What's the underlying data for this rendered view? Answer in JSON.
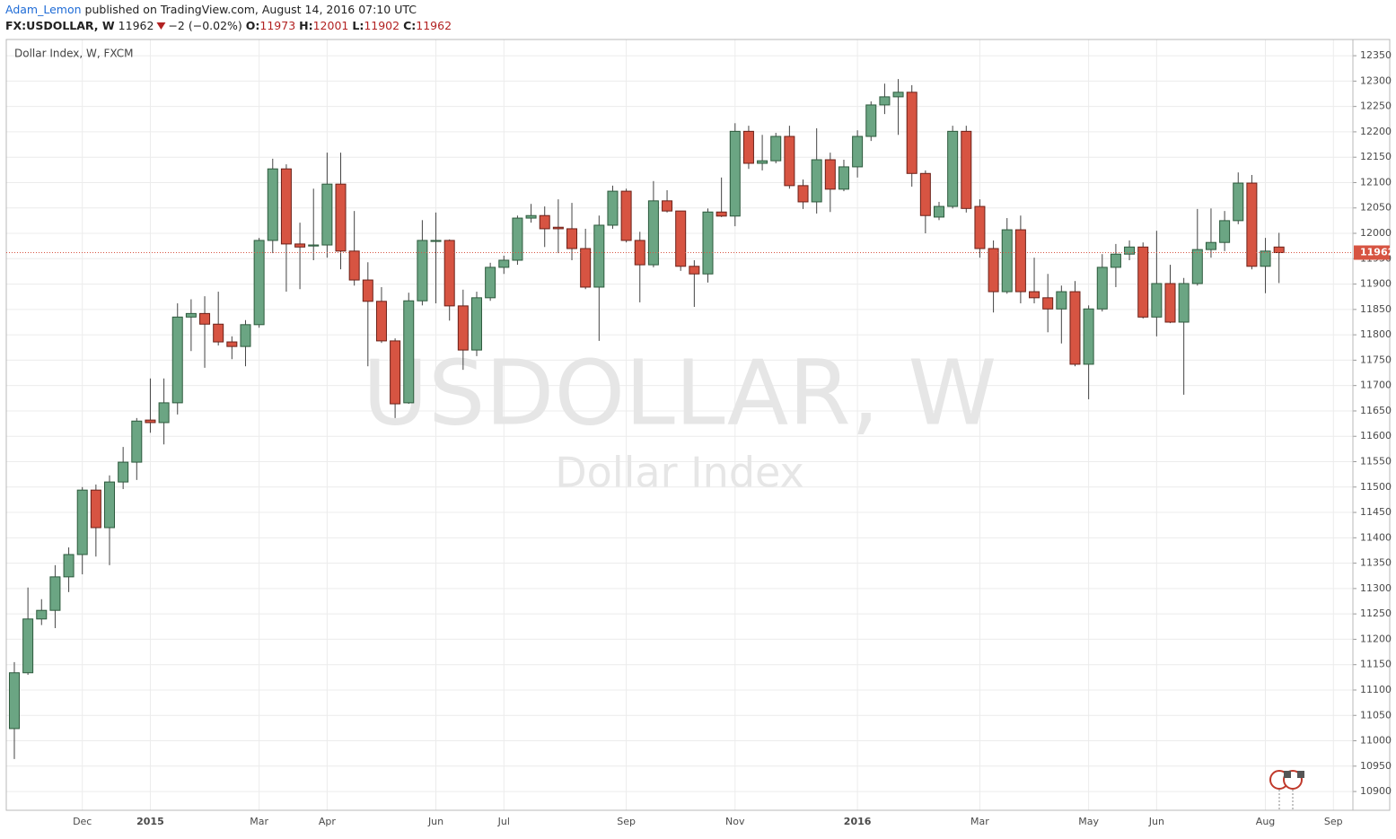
{
  "header": {
    "author": "Adam_Lemon",
    "published": "published on TradingView.com, August 14, 2016 07:10 UTC",
    "symbol": "FX:USDOLLAR, W",
    "last": "11962",
    "change": "−2 (−0.02%)",
    "open_label": "O:",
    "open": "11973",
    "high_label": "H:",
    "high": "12001",
    "low_label": "L:",
    "low": "11902",
    "close_label": "C:",
    "close": "11962"
  },
  "chart_data": {
    "type": "candlestick",
    "title": "Dollar Index, W, FXCM",
    "watermark": "USDOLLAR, W",
    "watermark_subtitle": "Dollar Index",
    "categories": [
      null,
      null,
      null,
      null,
      null,
      "Dec",
      null,
      null,
      null,
      null,
      "2015",
      null,
      null,
      null,
      null,
      null,
      null,
      null,
      "Mar",
      null,
      null,
      null,
      null,
      "Apr",
      null,
      null,
      null,
      null,
      null,
      null,
      null,
      "Jun",
      null,
      null,
      null,
      null,
      "Jul",
      null,
      null,
      null,
      null,
      null,
      null,
      null,
      null,
      "Sep",
      null,
      null,
      null,
      null,
      null,
      null,
      null,
      "Nov",
      null,
      null,
      null,
      null,
      null,
      null,
      null,
      null,
      "2016",
      null,
      null,
      null,
      null,
      null,
      null,
      null,
      null,
      "Mar",
      null,
      null,
      null,
      null,
      null,
      null,
      null,
      "May",
      null,
      null,
      null,
      null,
      "Jun",
      null,
      null,
      null,
      null,
      null,
      null,
      null,
      "Aug",
      null,
      null,
      null,
      null,
      "Sep",
      null
    ],
    "open": [
      11024,
      11134,
      11240,
      11257,
      11323,
      11367,
      11494,
      11420,
      11510,
      11549,
      11632,
      11627,
      11666,
      11835,
      11842,
      11821,
      11786,
      11777,
      11820,
      11986,
      12127,
      11979,
      11975,
      11977,
      12097,
      11965,
      11908,
      11866,
      11788,
      11666,
      11867,
      11984,
      11986,
      11857,
      11770,
      11873,
      11933,
      11947,
      12030,
      12035,
      12012,
      12009,
      11970,
      11894,
      12016,
      12083,
      11986,
      11938,
      12064,
      12044,
      11935,
      11920,
      12042,
      12034,
      12201,
      12138,
      12143,
      12191,
      12094,
      12062,
      12145,
      12087,
      12131,
      12191,
      12253,
      12269,
      12278,
      12118,
      12032,
      12053,
      12201,
      12053,
      11970,
      11885,
      12007,
      11885,
      11873,
      11851,
      11885,
      11742,
      11851,
      11933,
      11959,
      11973,
      11835,
      11901,
      11825,
      11901,
      11968,
      11982,
      12025,
      12099,
      11935,
      11973,
      null,
      null,
      null,
      null,
      null
    ],
    "high": [
      11155,
      11302,
      11279,
      11346,
      11381,
      11500,
      11505,
      11523,
      11579,
      11636,
      11714,
      11714,
      11862,
      11870,
      11876,
      11885,
      11797,
      11829,
      11991,
      12147,
      12136,
      12021,
      12088,
      12159,
      12159,
      12044,
      11943,
      11894,
      11793,
      11883,
      12026,
      12041,
      11988,
      11889,
      11885,
      11942,
      11956,
      12035,
      12058,
      12053,
      12067,
      12060,
      12009,
      12035,
      12094,
      12088,
      12003,
      12103,
      12085,
      12044,
      11947,
      12049,
      12110,
      12217,
      12212,
      12194,
      12198,
      12212,
      12106,
      12207,
      12159,
      12145,
      12203,
      12260,
      12295,
      12304,
      12292,
      12124,
      12062,
      12212,
      12212,
      12067,
      11986,
      12030,
      12035,
      11952,
      11920,
      11897,
      11906,
      11858,
      11959,
      11979,
      11986,
      11982,
      12005,
      11938,
      11912,
      12048,
      12049,
      12044,
      12120,
      12115,
      11991,
      12001,
      null,
      null,
      null,
      null,
      null
    ],
    "low": [
      10964,
      11130,
      11228,
      11222,
      11293,
      11328,
      11363,
      11346,
      11496,
      11514,
      11607,
      11584,
      11643,
      11768,
      11735,
      11779,
      11752,
      11738,
      11814,
      11961,
      11885,
      11890,
      11947,
      11952,
      11929,
      11897,
      11738,
      11784,
      11636,
      11664,
      11858,
      11862,
      11828,
      11731,
      11758,
      11867,
      11920,
      11938,
      12021,
      11973,
      11961,
      11947,
      11890,
      11788,
      12009,
      11982,
      11864,
      11933,
      12041,
      11926,
      11855,
      11903,
      12032,
      12014,
      12127,
      12124,
      12138,
      12088,
      12048,
      12039,
      12042,
      12083,
      12110,
      12182,
      12235,
      12194,
      12092,
      12000,
      12026,
      12049,
      12041,
      11952,
      11844,
      11881,
      11862,
      11862,
      11805,
      11783,
      11738,
      11673,
      11846,
      11894,
      11947,
      11832,
      11797,
      11823,
      11682,
      11897,
      11952,
      11965,
      12018,
      11929,
      11882,
      11902,
      null,
      null,
      null,
      null,
      null
    ],
    "close": [
      11134,
      11240,
      11257,
      11323,
      11367,
      11494,
      11420,
      11510,
      11549,
      11630,
      11627,
      11666,
      11835,
      11842,
      11821,
      11786,
      11777,
      11820,
      11986,
      12127,
      11979,
      11973,
      11977,
      12097,
      11965,
      11908,
      11866,
      11788,
      11664,
      11867,
      11986,
      11986,
      11857,
      11770,
      11873,
      11933,
      11947,
      12030,
      12035,
      12009,
      12009,
      11970,
      11894,
      12016,
      12083,
      11986,
      11938,
      12064,
      12044,
      11935,
      11920,
      12042,
      12034,
      12201,
      12138,
      12143,
      12191,
      12094,
      12062,
      12145,
      12087,
      12131,
      12191,
      12253,
      12269,
      12278,
      12118,
      12035,
      12053,
      12201,
      12049,
      11970,
      11885,
      12007,
      11885,
      11873,
      11851,
      11885,
      11742,
      11851,
      11933,
      11959,
      11973,
      11835,
      11901,
      11825,
      11901,
      11968,
      11982,
      12025,
      12099,
      11935,
      11965,
      11962,
      null,
      null,
      null,
      null,
      null
    ],
    "up_color": "#6ba583",
    "down_color": "#d75442",
    "last_price": 11962,
    "last_price_color": "#d75442",
    "ylim": [
      10863,
      12382
    ],
    "yticks": [
      10900,
      10950,
      11000,
      11050,
      11100,
      11150,
      11200,
      11250,
      11300,
      11350,
      11400,
      11450,
      11500,
      11550,
      11600,
      11650,
      11700,
      11750,
      11800,
      11850,
      11900,
      11950,
      12000,
      12050,
      12100,
      12150,
      12200,
      12250,
      12300,
      12350
    ],
    "grid": true
  }
}
